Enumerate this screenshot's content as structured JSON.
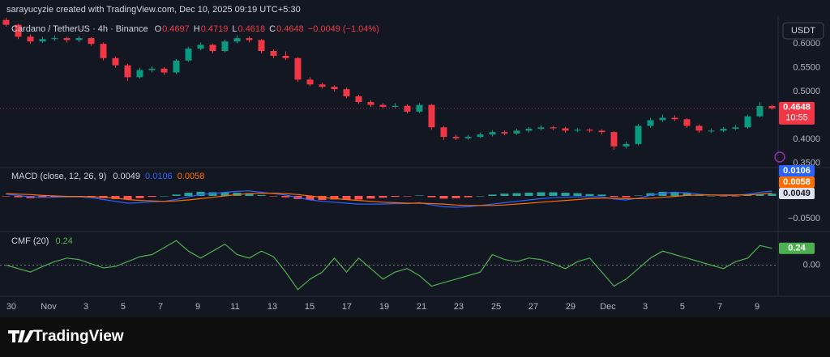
{
  "header": {
    "attribution": "sarayucyzie created with TradingView.com, Dec 10, 2025 09:19 UTC+5:30"
  },
  "footer": {
    "brand": "TradingView"
  },
  "chart_data": [
    {
      "type": "candlestick",
      "title": "Cardano / TetherUS · 4h · Binance",
      "ohlc_labels": [
        "O",
        "H",
        "L",
        "C"
      ],
      "change_text": "−0.0049 (−1.04%)",
      "currency": "USDT",
      "countdown": "10:55",
      "up_color": "#089981",
      "down_color": "#f23645",
      "candles": [
        [
          0.65,
          0.655,
          0.636,
          0.64
        ],
        [
          0.64,
          0.642,
          0.61,
          0.615
        ],
        [
          0.615,
          0.62,
          0.6,
          0.605
        ],
        [
          0.605,
          0.615,
          0.602,
          0.61
        ],
        [
          0.61,
          0.618,
          0.606,
          0.612
        ],
        [
          0.612,
          0.615,
          0.603,
          0.608
        ],
        [
          0.608,
          0.616,
          0.604,
          0.612
        ],
        [
          0.612,
          0.614,
          0.596,
          0.6
        ],
        [
          0.6,
          0.603,
          0.565,
          0.57
        ],
        [
          0.57,
          0.574,
          0.55,
          0.555
        ],
        [
          0.555,
          0.558,
          0.522,
          0.53
        ],
        [
          0.53,
          0.55,
          0.527,
          0.545
        ],
        [
          0.545,
          0.553,
          0.54,
          0.548
        ],
        [
          0.548,
          0.551,
          0.535,
          0.54
        ],
        [
          0.54,
          0.568,
          0.537,
          0.565
        ],
        [
          0.565,
          0.594,
          0.562,
          0.59
        ],
        [
          0.59,
          0.603,
          0.586,
          0.598
        ],
        [
          0.598,
          0.6,
          0.58,
          0.585
        ],
        [
          0.585,
          0.609,
          0.582,
          0.605
        ],
        [
          0.605,
          0.618,
          0.601,
          0.612
        ],
        [
          0.612,
          0.616,
          0.603,
          0.608
        ],
        [
          0.608,
          0.61,
          0.58,
          0.585
        ],
        [
          0.585,
          0.588,
          0.57,
          0.575
        ],
        [
          0.575,
          0.584,
          0.566,
          0.57
        ],
        [
          0.57,
          0.573,
          0.52,
          0.525
        ],
        [
          0.525,
          0.53,
          0.511,
          0.515
        ],
        [
          0.515,
          0.519,
          0.506,
          0.51
        ],
        [
          0.51,
          0.513,
          0.5,
          0.505
        ],
        [
          0.505,
          0.508,
          0.486,
          0.49
        ],
        [
          0.49,
          0.493,
          0.474,
          0.478
        ],
        [
          0.478,
          0.482,
          0.468,
          0.472
        ],
        [
          0.472,
          0.476,
          0.464,
          0.468
        ],
        [
          0.468,
          0.476,
          0.465,
          0.47
        ],
        [
          0.47,
          0.473,
          0.454,
          0.458
        ],
        [
          0.458,
          0.476,
          0.455,
          0.472
        ],
        [
          0.472,
          0.474,
          0.42,
          0.425
        ],
        [
          0.425,
          0.428,
          0.398,
          0.405
        ],
        [
          0.405,
          0.41,
          0.398,
          0.402
        ],
        [
          0.402,
          0.409,
          0.399,
          0.405
        ],
        [
          0.405,
          0.414,
          0.402,
          0.41
        ],
        [
          0.41,
          0.419,
          0.406,
          0.415
        ],
        [
          0.415,
          0.418,
          0.408,
          0.412
        ],
        [
          0.412,
          0.422,
          0.409,
          0.418
        ],
        [
          0.418,
          0.426,
          0.414,
          0.422
        ],
        [
          0.422,
          0.429,
          0.418,
          0.425
        ],
        [
          0.425,
          0.428,
          0.419,
          0.423
        ],
        [
          0.423,
          0.426,
          0.414,
          0.418
        ],
        [
          0.418,
          0.424,
          0.415,
          0.42
        ],
        [
          0.42,
          0.423,
          0.414,
          0.418
        ],
        [
          0.418,
          0.421,
          0.41,
          0.415
        ],
        [
          0.415,
          0.417,
          0.378,
          0.385
        ],
        [
          0.385,
          0.395,
          0.38,
          0.39
        ],
        [
          0.39,
          0.432,
          0.387,
          0.428
        ],
        [
          0.428,
          0.445,
          0.424,
          0.44
        ],
        [
          0.44,
          0.452,
          0.436,
          0.445
        ],
        [
          0.445,
          0.45,
          0.438,
          0.442
        ],
        [
          0.442,
          0.444,
          0.424,
          0.428
        ],
        [
          0.428,
          0.431,
          0.414,
          0.418
        ],
        [
          0.418,
          0.423,
          0.413,
          0.418
        ],
        [
          0.418,
          0.426,
          0.415,
          0.422
        ],
        [
          0.422,
          0.43,
          0.419,
          0.425
        ],
        [
          0.425,
          0.452,
          0.422,
          0.448
        ],
        [
          0.448,
          0.478,
          0.446,
          0.4697
        ],
        [
          0.4697,
          0.4719,
          0.4618,
          0.4648
        ]
      ],
      "xlim": [
        -0.5,
        63.5
      ],
      "xticks": [
        {
          "value": 0.43,
          "label": "30"
        },
        {
          "value": 3.5,
          "label": "Nov"
        },
        {
          "value": 6.57,
          "label": "3"
        },
        {
          "value": 9.63,
          "label": "5"
        },
        {
          "value": 12.7,
          "label": "7"
        },
        {
          "value": 15.77,
          "label": "9"
        },
        {
          "value": 18.83,
          "label": "11"
        },
        {
          "value": 21.9,
          "label": "13"
        },
        {
          "value": 24.97,
          "label": "15"
        },
        {
          "value": 28.03,
          "label": "17"
        },
        {
          "value": 31.1,
          "label": "19"
        },
        {
          "value": 34.17,
          "label": "21"
        },
        {
          "value": 37.23,
          "label": "23"
        },
        {
          "value": 40.3,
          "label": "25"
        },
        {
          "value": 43.37,
          "label": "27"
        },
        {
          "value": 46.43,
          "label": "29"
        },
        {
          "value": 49.5,
          "label": "Dec"
        },
        {
          "value": 52.57,
          "label": "3"
        },
        {
          "value": 55.63,
          "label": "5"
        },
        {
          "value": 58.7,
          "label": "7"
        },
        {
          "value": 61.77,
          "label": "9"
        }
      ],
      "ylim": [
        0.344,
        0.658
      ],
      "yticks": [
        {
          "value": 0.35,
          "label": "0.3500"
        },
        {
          "value": 0.4,
          "label": "0.4000"
        },
        {
          "value": 0.5,
          "label": "0.5000"
        },
        {
          "value": 0.55,
          "label": "0.5500"
        },
        {
          "value": 0.6,
          "label": "0.6000"
        }
      ]
    },
    {
      "type": "macd",
      "title": "MACD (close, 12, 26, 9)",
      "histogram": {
        "up_color": "#26a69a",
        "down_color": "#ff5252",
        "values": [
          -0.001,
          -0.003,
          -0.005,
          -0.004,
          -0.003,
          -0.001,
          -0.001,
          -0.002,
          -0.005,
          -0.007,
          -0.008,
          -0.005,
          -0.002,
          0,
          0.003,
          0.007,
          0.009,
          0.008,
          0.008,
          0.007,
          0.006,
          0.002,
          -0.001,
          -0.003,
          -0.007,
          -0.009,
          -0.009,
          -0.008,
          -0.008,
          -0.008,
          -0.006,
          -0.004,
          -0.002,
          -0.001,
          0.001,
          -0.003,
          -0.006,
          -0.005,
          -0.003,
          0,
          0.003,
          0.005,
          0.006,
          0.007,
          0.008,
          0.008,
          0.007,
          0.006,
          0.004,
          0.003,
          -0.002,
          -0.003,
          0.001,
          0.006,
          0.009,
          0.009,
          0.006,
          0.002,
          0,
          -0.001,
          -0.001,
          0.002,
          0.004,
          0.0049
        ]
      },
      "macd": {
        "color": "#2962ff",
        "values": [
          0.004,
          0.001,
          -0.002,
          -0.003,
          -0.003,
          -0.002,
          -0.002,
          -0.004,
          -0.008,
          -0.012,
          -0.016,
          -0.015,
          -0.013,
          -0.012,
          -0.008,
          -0.002,
          0.003,
          0.005,
          0.008,
          0.01,
          0.011,
          0.008,
          0.005,
          0.002,
          -0.004,
          -0.009,
          -0.012,
          -0.014,
          -0.016,
          -0.018,
          -0.018,
          -0.018,
          -0.017,
          -0.017,
          -0.015,
          -0.02,
          -0.024,
          -0.025,
          -0.024,
          -0.021,
          -0.018,
          -0.015,
          -0.012,
          -0.009,
          -0.006,
          -0.004,
          -0.003,
          -0.002,
          -0.002,
          -0.002,
          -0.007,
          -0.009,
          -0.005,
          0.001,
          0.006,
          0.008,
          0.007,
          0.004,
          0.002,
          0.001,
          0.001,
          0.004,
          0.008,
          0.0106
        ]
      },
      "signal": {
        "color": "#ff6d00",
        "values": [
          0.005,
          0.004,
          0.003,
          0.001,
          0,
          -0.001,
          -0.001,
          -0.002,
          -0.003,
          -0.005,
          -0.008,
          -0.01,
          -0.011,
          -0.012,
          -0.011,
          -0.009,
          -0.006,
          -0.003,
          0,
          0.003,
          0.005,
          0.006,
          0.006,
          0.005,
          0.003,
          0,
          -0.003,
          -0.006,
          -0.008,
          -0.01,
          -0.012,
          -0.014,
          -0.015,
          -0.016,
          -0.016,
          -0.017,
          -0.018,
          -0.02,
          -0.021,
          -0.021,
          -0.021,
          -0.02,
          -0.018,
          -0.016,
          -0.014,
          -0.012,
          -0.01,
          -0.008,
          -0.006,
          -0.005,
          -0.005,
          -0.006,
          -0.006,
          -0.005,
          -0.003,
          -0.001,
          0.001,
          0.002,
          0.002,
          0.002,
          0.002,
          0.002,
          0.004,
          0.0058
        ]
      },
      "xlim": [
        -0.5,
        63.5
      ],
      "ylim": [
        -0.0768,
        0.0625
      ],
      "yticks": [
        {
          "value": -0.05,
          "label": "−0.0500"
        }
      ]
    },
    {
      "type": "line",
      "title": "CMF (20)",
      "color": "#4caf50",
      "values": [
        0,
        -0.05,
        -0.1,
        -0.02,
        0.05,
        0.1,
        0.08,
        0.02,
        -0.04,
        -0.02,
        0.05,
        0.12,
        0.15,
        0.25,
        0.35,
        0.2,
        0.1,
        0.2,
        0.3,
        0.15,
        0.1,
        0.2,
        0.12,
        -0.1,
        -0.35,
        -0.2,
        -0.1,
        0.1,
        -0.1,
        0.1,
        -0.05,
        -0.2,
        -0.1,
        -0.05,
        -0.15,
        -0.3,
        -0.25,
        -0.2,
        -0.15,
        -0.1,
        0.15,
        0.08,
        0.05,
        0.1,
        0.08,
        0.02,
        -0.05,
        0.05,
        0.1,
        -0.1,
        -0.3,
        -0.2,
        -0.05,
        0.1,
        0.2,
        0.15,
        0.1,
        0.05,
        0,
        -0.05,
        0.05,
        0.1,
        0.28,
        0.24
      ],
      "xlim": [
        -0.5,
        63.5
      ],
      "ylim": [
        -0.434,
        0.48
      ],
      "yticks": [
        {
          "value": 0,
          "label": "0.00"
        }
      ]
    }
  ]
}
